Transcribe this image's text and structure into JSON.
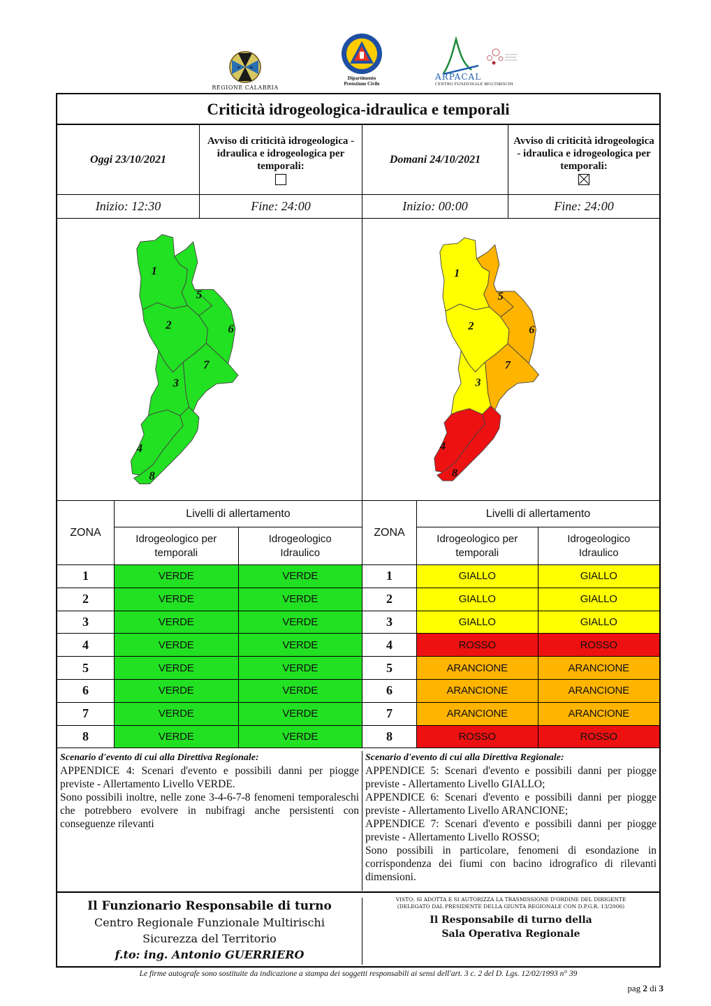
{
  "logos": {
    "region": "REGIONE CALABRIA",
    "civil_protection_line1": "Dipartimento",
    "civil_protection_line2": "Protezione Civile",
    "arpacal": "ARPACAL",
    "arpacal_sub": "CENTRO FUNZIONALE MULTIRISCHI"
  },
  "title": "Criticità idrogeologica-idraulica e temporali",
  "today": {
    "label": "Oggi 23/10/2021",
    "notice": "Avviso di criticità idrogeologica - idraulica e idrogeologica per temporali:",
    "checked": false,
    "start": "Inizio: 12:30",
    "end": "Fine: 24:00"
  },
  "tomorrow": {
    "label": "Domani 24/10/2021",
    "notice": "Avviso di criticità idrogeologica - idraulica e idrogeologica per temporali:",
    "checked": true,
    "start": "Inizio: 00:00",
    "end": "Fine: 24:00"
  },
  "colors": {
    "VERDE": "#22e022",
    "GIALLO": "#ffff00",
    "ARANCIONE": "#ffb400",
    "ROSSO": "#ee1111",
    "map_today": {
      "1": "#22e022",
      "2": "#22e022",
      "3": "#22e022",
      "4": "#22e022",
      "5": "#22e022",
      "6": "#22e022",
      "7": "#22e022",
      "8": "#22e022"
    },
    "map_tomorrow": {
      "1": "#ffff00",
      "2": "#ffff00",
      "3": "#ffff00",
      "4": "#ee1111",
      "5": "#ffb400",
      "6": "#ffb400",
      "7": "#ffb400",
      "8": "#ee1111"
    }
  },
  "table": {
    "zone_header": "ZONA",
    "levels_header": "Livelli di allertamento",
    "col1": "Idrogeologico per temporali",
    "col2": "Idrogeologico Idraulico"
  },
  "zones": [
    "1",
    "2",
    "3",
    "4",
    "5",
    "6",
    "7",
    "8"
  ],
  "today_levels": [
    [
      "VERDE",
      "VERDE"
    ],
    [
      "VERDE",
      "VERDE"
    ],
    [
      "VERDE",
      "VERDE"
    ],
    [
      "VERDE",
      "VERDE"
    ],
    [
      "VERDE",
      "VERDE"
    ],
    [
      "VERDE",
      "VERDE"
    ],
    [
      "VERDE",
      "VERDE"
    ],
    [
      "VERDE",
      "VERDE"
    ]
  ],
  "tomorrow_levels": [
    [
      "GIALLO",
      "GIALLO"
    ],
    [
      "GIALLO",
      "GIALLO"
    ],
    [
      "GIALLO",
      "GIALLO"
    ],
    [
      "ROSSO",
      "ROSSO"
    ],
    [
      "ARANCIONE",
      "ARANCIONE"
    ],
    [
      "ARANCIONE",
      "ARANCIONE"
    ],
    [
      "ARANCIONE",
      "ARANCIONE"
    ],
    [
      "ROSSO",
      "ROSSO"
    ]
  ],
  "scenario_today": {
    "heading": "Scenario d'evento di cui alla Direttiva Regionale:",
    "lines": [
      "APPENDICE 4: Scenari d'evento e possibili danni per piogge previste - Allertamento Livello VERDE.",
      "Sono possibili inoltre, nelle zone 3-4-6-7-8 fenomeni temporaleschi che potrebbero evolvere in nubifragi anche persistenti con conseguenze rilevanti"
    ]
  },
  "scenario_tomorrow": {
    "heading": "Scenario d'evento di cui alla Direttiva Regionale:",
    "lines": [
      "APPENDICE 5: Scenari d'evento e possibili danni per piogge previste - Allertamento Livello GIALLO;",
      "APPENDICE 6: Scenari d'evento e possibili danni per piogge previste - Allertamento Livello ARANCIONE;",
      "APPENDICE 7: Scenari d'evento e possibili danni per piogge previste - Allertamento Livello ROSSO;",
      "Sono possibili in particolare, fenomeni di esondazione in corrispondenza dei fiumi con bacino idrografico di rilevanti dimensioni."
    ]
  },
  "footer_left": {
    "line1": "Il Funzionario Responsabile di turno",
    "line2": "Centro Regionale Funzionale Multirischi",
    "line3": "Sicurezza del Territorio",
    "line4": "f.to: ing. Antonio GUERRIERO"
  },
  "footer_right": {
    "visto1": "VISTO: SI ADOTTA E SI AUTORIZZA LA TRASMISSIONE D'ORDINE DEL DIRIGENTE",
    "visto2": "(DELEGATO DAL PRESIDENTE DELLA GIUNTA REGIONALE CON D.P.G.R. 13/2006)",
    "line1": "Il Responsabile di turno della",
    "line2": "Sala Operativa Regionale"
  },
  "signature_note": "Le firme autografe sono sostituite da indicazione a stampa dei soggetti responsabili ai sensi dell'art. 3 c. 2 del D. Lgs. 12/02/1993 n° 39",
  "page": {
    "prefix": "pag",
    "current": "2",
    "sep": "di",
    "total": "3"
  }
}
